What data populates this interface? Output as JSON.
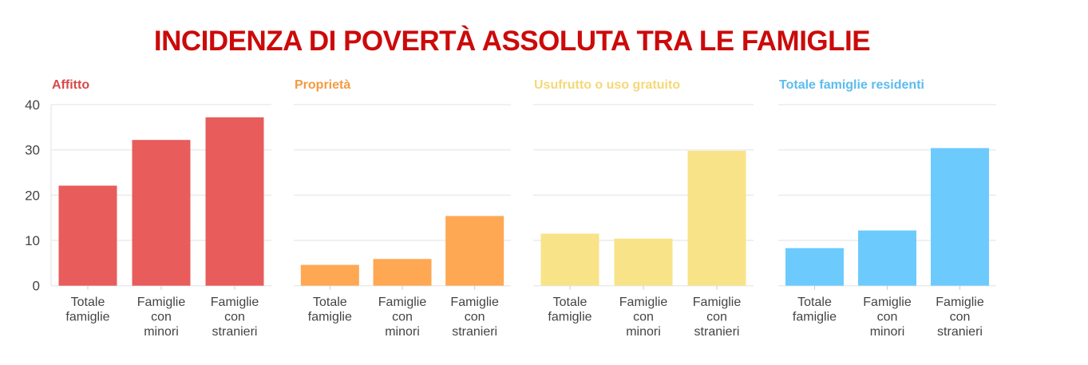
{
  "chart_data": {
    "type": "bar",
    "title": "INCIDENZA DI POVERTÀ ASSOLUTA TRA LE FAMIGLIE",
    "ylim": [
      0,
      40
    ],
    "yticks": [
      "0",
      "10",
      "20",
      "30",
      "40"
    ],
    "grid": true,
    "categories": [
      [
        "Totale",
        "famiglie"
      ],
      [
        "Famiglie",
        "con",
        "minori"
      ],
      [
        "Famiglie",
        "con",
        "stranieri"
      ]
    ],
    "panels": [
      {
        "name": "Affitto",
        "color": "#e85c5c",
        "title_color": "#d94848",
        "values": [
          22.1,
          32.2,
          37.2
        ]
      },
      {
        "name": "Proprietà",
        "color": "#fea854",
        "title_color": "#f59a40",
        "values": [
          4.6,
          5.9,
          15.4
        ]
      },
      {
        "name": "Usufrutto o uso gratuito",
        "color": "#f8e388",
        "title_color": "#f5d878",
        "values": [
          11.5,
          10.4,
          29.8
        ]
      },
      {
        "name": "Totale famiglie residenti",
        "color": "#6ccbfc",
        "title_color": "#5bbcef",
        "values": [
          8.3,
          12.2,
          30.4
        ]
      }
    ]
  }
}
